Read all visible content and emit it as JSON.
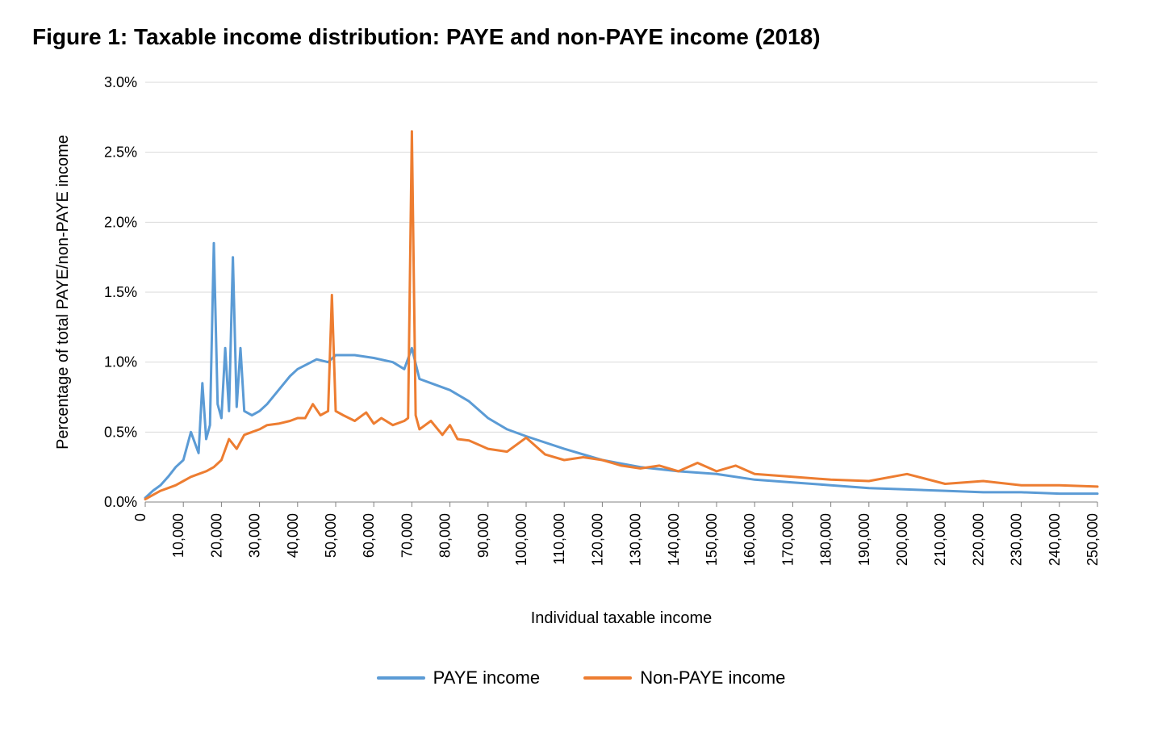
{
  "title": "Figure 1: Taxable income distribution: PAYE and non-PAYE income (2018)",
  "chart": {
    "type": "line",
    "background_color": "#ffffff",
    "grid_color": "#d9d9d9",
    "axis_color": "#808080",
    "title_fontsize": 28,
    "label_fontsize": 20,
    "tick_fontsize": 18,
    "line_width": 3,
    "xlabel": "Individual taxable income",
    "ylabel": "Percentage of total  PAYE/non-PAYE income",
    "xlim": [
      0,
      250000
    ],
    "ylim": [
      0,
      3.0
    ],
    "ytick_step": 0.5,
    "yticks": [
      0.0,
      0.5,
      1.0,
      1.5,
      2.0,
      2.5,
      3.0
    ],
    "ytick_labels": [
      "0.0%",
      "0.5%",
      "1.0%",
      "1.5%",
      "2.0%",
      "2.5%",
      "3.0%"
    ],
    "xticks": [
      0,
      10000,
      20000,
      30000,
      40000,
      50000,
      60000,
      70000,
      80000,
      90000,
      100000,
      110000,
      120000,
      130000,
      140000,
      150000,
      160000,
      170000,
      180000,
      190000,
      200000,
      210000,
      220000,
      230000,
      240000,
      250000
    ],
    "xtick_labels": [
      "0",
      "10,000",
      "20,000",
      "30,000",
      "40,000",
      "50,000",
      "60,000",
      "70,000",
      "80,000",
      "90,000",
      "100,000",
      "110,000",
      "120,000",
      "130,000",
      "140,000",
      "150,000",
      "160,000",
      "170,000",
      "180,000",
      "190,000",
      "200,000",
      "210,000",
      "220,000",
      "230,000",
      "240,000",
      "250,000"
    ],
    "xtick_rotation": -90,
    "series": [
      {
        "name": "PAYE income",
        "color": "#5b9bd5",
        "x": [
          0,
          2000,
          4000,
          6000,
          8000,
          10000,
          12000,
          14000,
          15000,
          16000,
          17000,
          18000,
          19000,
          20000,
          21000,
          22000,
          23000,
          24000,
          25000,
          26000,
          28000,
          30000,
          32000,
          35000,
          38000,
          40000,
          45000,
          48000,
          50000,
          55000,
          60000,
          65000,
          68000,
          70000,
          72000,
          75000,
          80000,
          85000,
          90000,
          95000,
          100000,
          110000,
          120000,
          130000,
          140000,
          150000,
          160000,
          170000,
          180000,
          190000,
          200000,
          210000,
          220000,
          230000,
          240000,
          250000
        ],
        "y": [
          0.03,
          0.08,
          0.12,
          0.18,
          0.25,
          0.3,
          0.5,
          0.35,
          0.85,
          0.45,
          0.55,
          1.85,
          0.7,
          0.6,
          1.1,
          0.65,
          1.75,
          0.68,
          1.1,
          0.65,
          0.62,
          0.65,
          0.7,
          0.8,
          0.9,
          0.95,
          1.02,
          1.0,
          1.05,
          1.05,
          1.03,
          1.0,
          0.95,
          1.1,
          0.88,
          0.85,
          0.8,
          0.72,
          0.6,
          0.52,
          0.47,
          0.38,
          0.3,
          0.25,
          0.22,
          0.2,
          0.16,
          0.14,
          0.12,
          0.1,
          0.09,
          0.08,
          0.07,
          0.07,
          0.06,
          0.06
        ]
      },
      {
        "name": "Non-PAYE income",
        "color": "#ed7d31",
        "x": [
          0,
          2000,
          4000,
          6000,
          8000,
          10000,
          12000,
          14000,
          16000,
          18000,
          20000,
          22000,
          24000,
          26000,
          28000,
          30000,
          32000,
          35000,
          38000,
          40000,
          42000,
          44000,
          46000,
          48000,
          49000,
          50000,
          52000,
          55000,
          58000,
          60000,
          62000,
          65000,
          68000,
          69000,
          70000,
          71000,
          72000,
          75000,
          78000,
          80000,
          82000,
          85000,
          90000,
          95000,
          100000,
          105000,
          110000,
          115000,
          120000,
          125000,
          130000,
          135000,
          140000,
          145000,
          150000,
          155000,
          160000,
          170000,
          180000,
          190000,
          200000,
          210000,
          220000,
          230000,
          240000,
          250000
        ],
        "y": [
          0.02,
          0.05,
          0.08,
          0.1,
          0.12,
          0.15,
          0.18,
          0.2,
          0.22,
          0.25,
          0.3,
          0.45,
          0.38,
          0.48,
          0.5,
          0.52,
          0.55,
          0.56,
          0.58,
          0.6,
          0.6,
          0.7,
          0.62,
          0.65,
          1.48,
          0.65,
          0.62,
          0.58,
          0.64,
          0.56,
          0.6,
          0.55,
          0.58,
          0.6,
          2.65,
          0.62,
          0.52,
          0.58,
          0.48,
          0.55,
          0.45,
          0.44,
          0.38,
          0.36,
          0.46,
          0.34,
          0.3,
          0.32,
          0.3,
          0.26,
          0.24,
          0.26,
          0.22,
          0.28,
          0.22,
          0.26,
          0.2,
          0.18,
          0.16,
          0.15,
          0.2,
          0.13,
          0.15,
          0.12,
          0.12,
          0.11
        ]
      }
    ],
    "legend": {
      "position": "bottom",
      "items": [
        "PAYE income",
        "Non-PAYE income"
      ]
    }
  }
}
